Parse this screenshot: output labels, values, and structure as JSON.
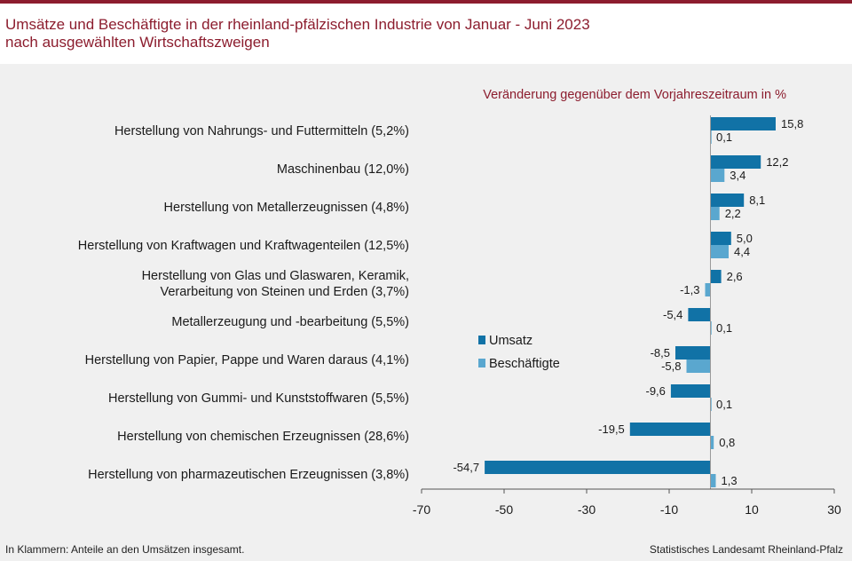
{
  "title_lines": [
    "Umsätze und Beschäftigte in der rheinland-pfälzischen Industrie von Januar - Juni 2023",
    "nach ausgewählten Wirtschaftszweigen"
  ],
  "colors": {
    "brand": "#8c1d2e",
    "umsatz": "#1172a6",
    "beschaeftigte": "#5aa7cf"
  },
  "footer": {
    "note": "In Klammern: Anteile an den Umsätzen insgesamt.",
    "source": "Statistisches Landesamt Rheinland-Pfalz"
  },
  "chart_data": {
    "type": "bar",
    "orientation": "horizontal",
    "title": "Veränderung gegenüber dem Vorjahreszeitraum in %",
    "categories": [
      [
        "Herstellung von Nahrungs- und Futtermitteln (5,2%)"
      ],
      [
        "Maschinenbau (12,0%)"
      ],
      [
        "Herstellung von Metallerzeugnissen (4,8%)"
      ],
      [
        "Herstellung von Kraftwagen und Kraftwagenteilen (12,5%)"
      ],
      [
        "Herstellung von Glas und Glaswaren, Keramik,",
        "Verarbeitung von Steinen und Erden (3,7%)"
      ],
      [
        "Metallerzeugung und -bearbeitung (5,5%)"
      ],
      [
        "Herstellung von Papier, Pappe und Waren daraus (4,1%)"
      ],
      [
        "Herstellung von Gummi- und Kunststoffwaren (5,5%)"
      ],
      [
        "Herstellung von chemischen Erzeugnissen (28,6%)"
      ],
      [
        "Herstellung von pharmazeutischen Erzeugnissen (3,8%)"
      ]
    ],
    "series": [
      {
        "name": "Umsatz",
        "values": [
          15.8,
          12.2,
          8.1,
          5.0,
          2.6,
          -5.4,
          -8.5,
          -9.6,
          -19.5,
          -54.7
        ],
        "labels": [
          "15,8",
          "12,2",
          "8,1",
          "5,0",
          "2,6",
          "-5,4",
          "-8,5",
          "-9,6",
          "-19,5",
          "-54,7"
        ]
      },
      {
        "name": "Beschäftigte",
        "values": [
          0.1,
          3.4,
          2.2,
          4.4,
          -1.3,
          0.1,
          -5.8,
          0.1,
          0.8,
          1.3
        ],
        "labels": [
          "0,1",
          "3,4",
          "2,2",
          "4,4",
          "-1,3",
          "0,1",
          "-5,8",
          "0,1",
          "0,8",
          "1,3"
        ]
      }
    ],
    "xlim": [
      -70,
      30
    ],
    "xticks": [
      -70,
      -50,
      -30,
      -10,
      10,
      30
    ],
    "xtick_labels": [
      "-70",
      "-50",
      "-30",
      "-10",
      "10",
      "30"
    ],
    "grid": false,
    "legend_position": "center-left"
  }
}
